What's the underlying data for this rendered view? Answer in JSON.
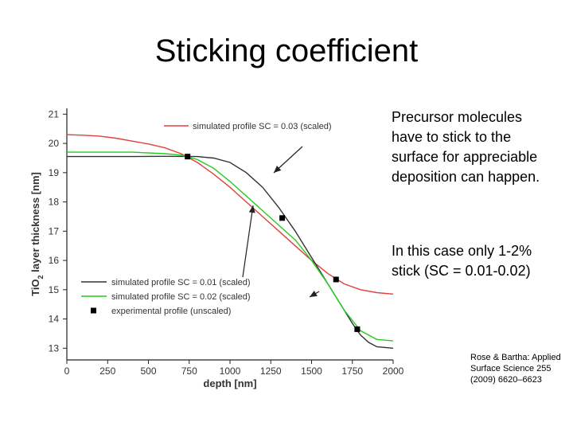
{
  "slide": {
    "title": "Sticking coefficient",
    "paragraphs": [
      "Precursor molecules have to stick to the surface for appreciable deposition can happen.",
      "In this case only 1-2% stick (SC = 0.01-0.02)"
    ],
    "citation": "Rose & Bartha: Applied Surface Science 255 (2009) 6620–6623"
  },
  "chart_data": {
    "type": "line",
    "xlabel": "depth [nm]",
    "ylabel_parts": [
      "TiO",
      "2",
      " layer thickness [nm]"
    ],
    "xlim": [
      0,
      2000
    ],
    "ylim": [
      12.6,
      21.2
    ],
    "xticks": [
      0,
      250,
      500,
      750,
      1000,
      1250,
      1500,
      1750,
      2000
    ],
    "yticks": [
      13,
      14,
      15,
      16,
      17,
      18,
      19,
      20,
      21
    ],
    "colors": {
      "sc003": "#e04040",
      "sc001": "#333333",
      "sc002": "#22cc22",
      "experimental": "#000000"
    },
    "series": [
      {
        "key": "sc003",
        "name": "simulated profile SC = 0.03 (scaled)",
        "x": [
          0,
          100,
          200,
          300,
          400,
          500,
          600,
          700,
          800,
          900,
          1000,
          1100,
          1200,
          1300,
          1400,
          1500,
          1600,
          1700,
          1800,
          1900,
          2000
        ],
        "y": [
          20.3,
          20.28,
          20.25,
          20.18,
          20.08,
          19.98,
          19.85,
          19.65,
          19.35,
          18.95,
          18.5,
          18.0,
          17.5,
          17.0,
          16.5,
          16.0,
          15.55,
          15.2,
          15.0,
          14.9,
          14.85
        ]
      },
      {
        "key": "sc001",
        "name": "simulated profile SC = 0.01 (scaled)",
        "x": [
          0,
          200,
          400,
          600,
          800,
          900,
          1000,
          1100,
          1200,
          1300,
          1400,
          1500,
          1600,
          1700,
          1750,
          1800,
          1850,
          1900,
          2000
        ],
        "y": [
          19.55,
          19.55,
          19.55,
          19.56,
          19.55,
          19.5,
          19.35,
          19.0,
          18.5,
          17.8,
          17.0,
          16.1,
          15.2,
          14.3,
          13.85,
          13.45,
          13.2,
          13.05,
          13.0
        ]
      },
      {
        "key": "sc002",
        "name": "simulated profile SC = 0.02 (scaled)",
        "x": [
          0,
          200,
          400,
          600,
          700,
          800,
          900,
          1000,
          1100,
          1200,
          1300,
          1400,
          1500,
          1600,
          1700,
          1800,
          1900,
          2000
        ],
        "y": [
          19.7,
          19.7,
          19.7,
          19.65,
          19.6,
          19.45,
          19.15,
          18.7,
          18.2,
          17.7,
          17.2,
          16.7,
          16.0,
          15.2,
          14.3,
          13.6,
          13.3,
          13.25
        ]
      },
      {
        "key": "experimental",
        "name": "experimental profile (unscaled)",
        "x": [
          740,
          1320,
          1650,
          1780
        ],
        "y": [
          19.55,
          17.45,
          15.35,
          13.65
        ]
      }
    ]
  }
}
